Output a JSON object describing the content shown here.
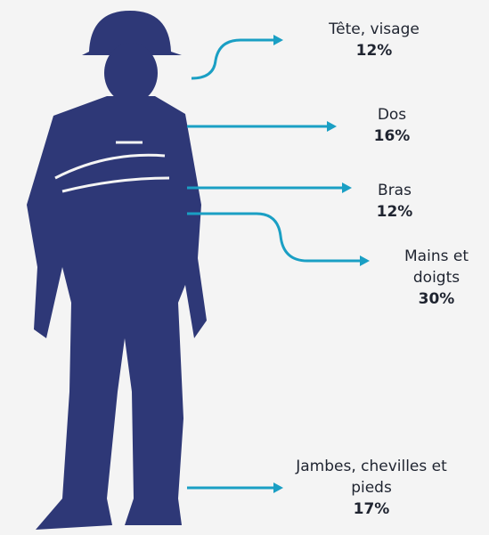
{
  "items": [
    {
      "label": "Tête, visage",
      "value": "12%"
    },
    {
      "label": "Dos",
      "value": "16%"
    },
    {
      "label": "Bras",
      "value": "12%"
    },
    {
      "label": "Mains et doigts",
      "value": "30%"
    },
    {
      "label": "Jambes, chevilles et pieds",
      "value": "17%"
    }
  ]
}
